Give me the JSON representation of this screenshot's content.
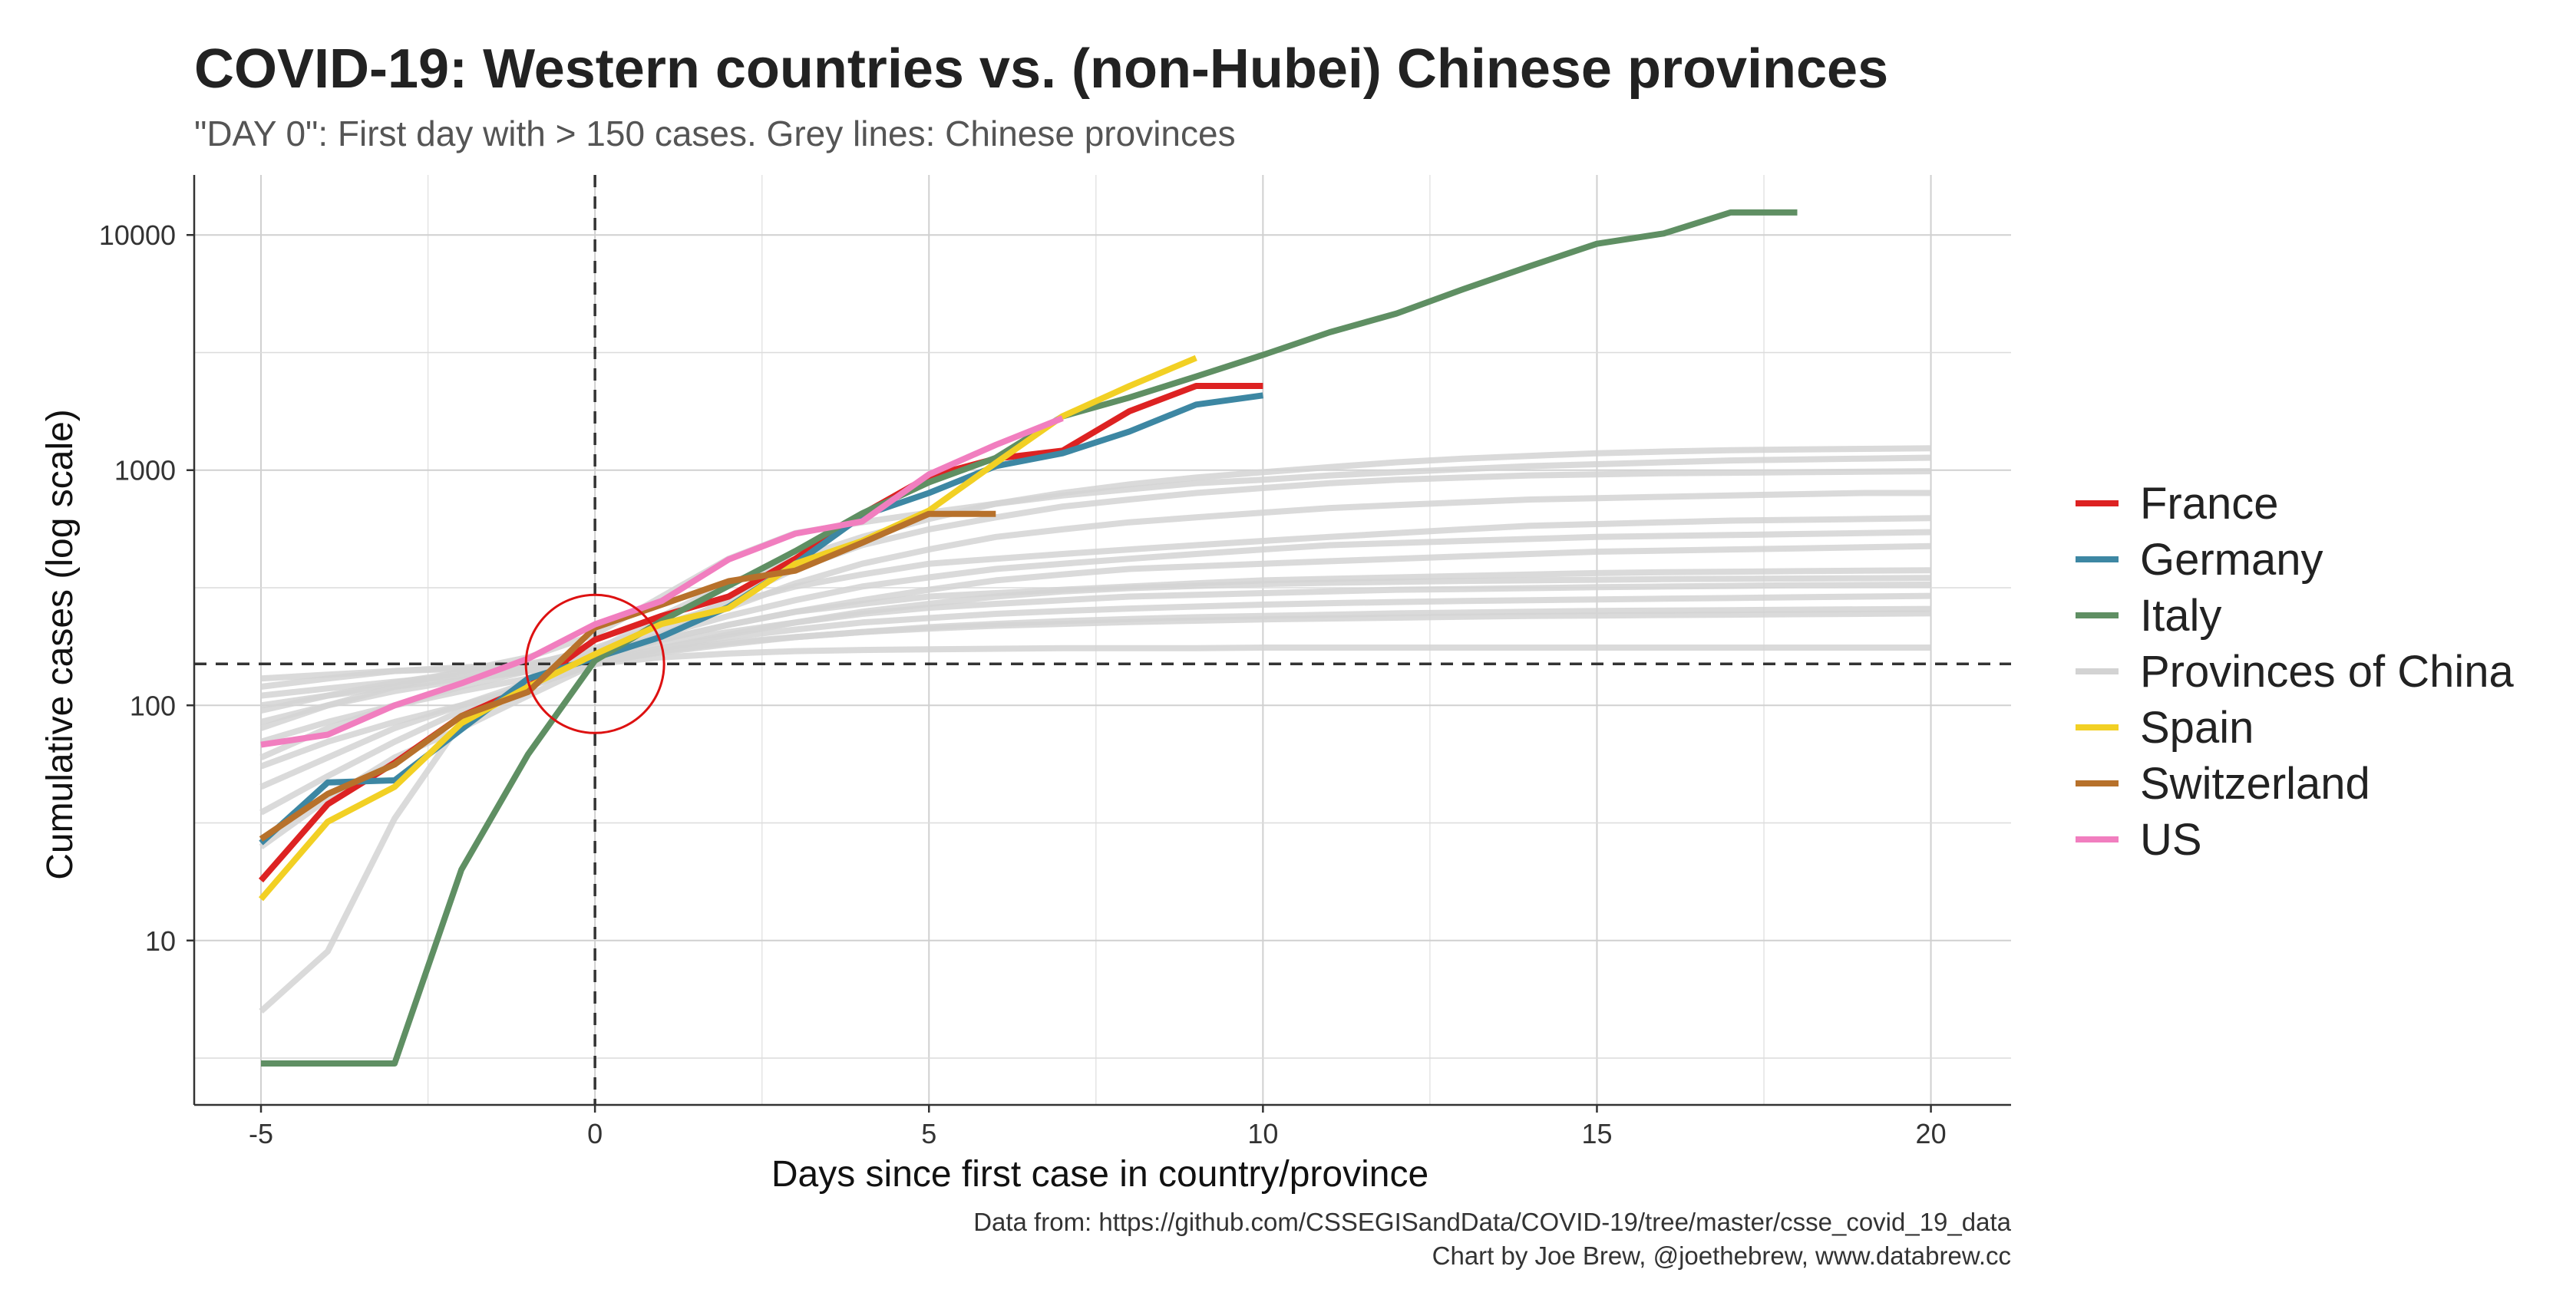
{
  "chart_data": {
    "type": "line",
    "title": "COVID-19: Western countries vs. (non-Hubei) Chinese provinces",
    "subtitle": "\"DAY 0\": First day with > 150 cases. Grey lines: Chinese provinces",
    "xlabel": "Days since first case in country/province",
    "ylabel": "Cumulative cases (log scale)",
    "y_scale": "log10",
    "xlim": [
      -6,
      21.2
    ],
    "ylim": [
      2,
      18000
    ],
    "x_ticks": [
      {
        "value": -5,
        "label": "-5"
      },
      {
        "value": 0,
        "label": "0"
      },
      {
        "value": 5,
        "label": "5"
      },
      {
        "value": 10,
        "label": "10"
      },
      {
        "value": 15,
        "label": "15"
      },
      {
        "value": 20,
        "label": "20"
      }
    ],
    "y_ticks": [
      {
        "value": 10,
        "label": "10"
      },
      {
        "value": 100,
        "label": "100"
      },
      {
        "value": 1000,
        "label": "1000"
      },
      {
        "value": 10000,
        "label": "10000"
      }
    ],
    "grid": true,
    "reference_lines": {
      "x": 0,
      "y": 150,
      "style": "dashed"
    },
    "annotation": {
      "type": "circle",
      "x": 0,
      "y": 150,
      "color": "#dd1111"
    },
    "caption": [
      "Data from: https://github.com/CSSEGISandData/COVID-19/tree/master/csse_covid_19_data",
      "Chart by Joe Brew, @joethebrew, www.databrew.cc"
    ],
    "legend_position": "right",
    "legend": [
      {
        "name": "France",
        "color": "#dd2222"
      },
      {
        "name": "Germany",
        "color": "#3d87a3"
      },
      {
        "name": "Italy",
        "color": "#5f8f63"
      },
      {
        "name": "Provinces of China",
        "color": "#d3d3d3"
      },
      {
        "name": "Spain",
        "color": "#f2d024"
      },
      {
        "name": "Switzerland",
        "color": "#b7712b"
      },
      {
        "name": "US",
        "color": "#f17ebf"
      }
    ],
    "province_series_color": "#d3d3d3",
    "province_series": [
      {
        "x": [
          -5,
          -4,
          -3,
          -2,
          -1,
          0,
          1,
          2,
          3,
          4,
          5,
          6,
          7,
          8,
          9,
          10,
          11,
          12,
          13,
          14,
          15,
          16,
          17,
          18,
          19,
          20
        ],
        "y": [
          5,
          9,
          33,
          85,
          130,
          170,
          240,
          330,
          420,
          520,
          620,
          720,
          800,
          870,
          930,
          980,
          1030,
          1080,
          1120,
          1150,
          1180,
          1200,
          1215,
          1225,
          1232,
          1238
        ]
      },
      {
        "x": [
          -5,
          -4,
          -3,
          -2,
          -1,
          0,
          1,
          2,
          3,
          4,
          5,
          6,
          7,
          8,
          9,
          10,
          11,
          12,
          13,
          14,
          15,
          16,
          17,
          18,
          19,
          20
        ],
        "y": [
          80,
          100,
          120,
          140,
          160,
          200,
          290,
          420,
          540,
          600,
          660,
          720,
          780,
          830,
          880,
          910,
          950,
          980,
          1010,
          1040,
          1060,
          1080,
          1100,
          1110,
          1120,
          1130
        ]
      },
      {
        "x": [
          -5,
          -4,
          -3,
          -2,
          -1,
          0,
          1,
          2,
          3,
          4,
          5,
          6,
          7,
          8,
          9,
          10,
          11,
          12,
          13,
          14,
          15,
          16,
          17,
          18,
          19,
          20
        ],
        "y": [
          120,
          130,
          140,
          145,
          150,
          170,
          210,
          280,
          380,
          480,
          560,
          630,
          700,
          750,
          800,
          840,
          880,
          910,
          930,
          950,
          960,
          970,
          975,
          980,
          985,
          990
        ]
      },
      {
        "x": [
          -5,
          -4,
          -3,
          -2,
          -1,
          0,
          1,
          2,
          3,
          4,
          5,
          6,
          7,
          8,
          9,
          10,
          11,
          12,
          13,
          14,
          15,
          16,
          17,
          18,
          19,
          20
        ],
        "y": [
          60,
          80,
          100,
          120,
          140,
          160,
          200,
          260,
          330,
          400,
          460,
          520,
          560,
          600,
          630,
          660,
          690,
          710,
          730,
          750,
          760,
          770,
          780,
          790,
          800,
          800
        ]
      },
      {
        "x": [
          -5,
          -4,
          -3,
          -2,
          -1,
          0,
          1,
          2,
          3,
          4,
          5,
          6,
          7,
          8,
          9,
          10,
          11,
          12,
          13,
          14,
          15,
          16,
          17,
          18,
          19,
          20
        ],
        "y": [
          95,
          110,
          125,
          138,
          148,
          175,
          220,
          270,
          320,
          360,
          400,
          420,
          440,
          460,
          480,
          500,
          520,
          540,
          560,
          580,
          590,
          600,
          610,
          615,
          620,
          625
        ]
      },
      {
        "x": [
          -5,
          -4,
          -3,
          -2,
          -1,
          0,
          1,
          2,
          3,
          4,
          5,
          6,
          7,
          8,
          9,
          10,
          11,
          12,
          13,
          14,
          15,
          16,
          17,
          18,
          19,
          20
        ],
        "y": [
          45,
          60,
          80,
          100,
          125,
          160,
          200,
          240,
          280,
          320,
          350,
          380,
          400,
          420,
          440,
          460,
          480,
          490,
          500,
          510,
          520,
          525,
          530,
          535,
          540,
          545
        ]
      },
      {
        "x": [
          -5,
          -4,
          -3,
          -2,
          -1,
          0,
          1,
          2,
          3,
          4,
          5,
          6,
          7,
          8,
          9,
          10,
          11,
          12,
          13,
          14,
          15,
          16,
          17,
          18,
          19,
          20
        ],
        "y": [
          130,
          135,
          140,
          143,
          147,
          165,
          190,
          220,
          250,
          280,
          310,
          340,
          360,
          380,
          390,
          400,
          410,
          420,
          430,
          440,
          450,
          455,
          460,
          465,
          470,
          475
        ]
      },
      {
        "x": [
          -5,
          -4,
          -3,
          -2,
          -1,
          0,
          1,
          2,
          3,
          4,
          5,
          6,
          7,
          8,
          9,
          10,
          11,
          12,
          13,
          14,
          15,
          16,
          17,
          18,
          19,
          20
        ],
        "y": [
          70,
          85,
          100,
          115,
          130,
          160,
          190,
          220,
          250,
          270,
          290,
          300,
          310,
          320,
          330,
          340,
          345,
          350,
          355,
          360,
          365,
          368,
          370,
          372,
          374,
          375
        ]
      },
      {
        "x": [
          -5,
          -4,
          -3,
          -2,
          -1,
          0,
          1,
          2,
          3,
          4,
          5,
          6,
          7,
          8,
          9,
          10,
          11,
          12,
          13,
          14,
          15,
          16,
          17,
          18,
          19,
          20
        ],
        "y": [
          110,
          118,
          126,
          134,
          142,
          158,
          185,
          205,
          225,
          245,
          260,
          270,
          280,
          290,
          295,
          300,
          305,
          310,
          312,
          315,
          318,
          320,
          322,
          324,
          325,
          326
        ]
      },
      {
        "x": [
          -5,
          -4,
          -3,
          -2,
          -1,
          0,
          1,
          2,
          3,
          4,
          5,
          6,
          7,
          8,
          9,
          10,
          11,
          12,
          13,
          14,
          15,
          16,
          17,
          18,
          19,
          20
        ],
        "y": [
          85,
          100,
          115,
          128,
          140,
          155,
          175,
          195,
          210,
          225,
          235,
          245,
          252,
          258,
          263,
          268,
          272,
          275,
          278,
          280,
          282,
          284,
          286,
          288,
          290,
          292
        ]
      },
      {
        "x": [
          -5,
          -4,
          -3,
          -2,
          -1,
          0,
          1,
          2,
          3,
          4,
          5,
          6,
          7,
          8,
          9,
          10,
          11,
          12,
          13,
          14,
          15,
          16,
          17,
          18,
          19,
          20
        ],
        "y": [
          100,
          110,
          120,
          130,
          140,
          152,
          168,
          182,
          195,
          205,
          215,
          222,
          228,
          233,
          237,
          240,
          243,
          246,
          248,
          250,
          252,
          253,
          254,
          255,
          256,
          257
        ]
      },
      {
        "x": [
          -5,
          -4,
          -3,
          -2,
          -1,
          0,
          1,
          2,
          3,
          4,
          5,
          6,
          7,
          8,
          9,
          10,
          11,
          12,
          13,
          14,
          15,
          16,
          17,
          18,
          19,
          20
        ],
        "y": [
          25,
          40,
          60,
          80,
          110,
          150,
          170,
          185,
          195,
          205,
          212,
          218,
          222,
          226,
          229,
          232,
          234,
          236,
          238,
          240,
          241,
          242,
          243,
          244,
          245,
          246
        ]
      },
      {
        "x": [
          -5,
          -4,
          -3,
          -2,
          -1,
          0,
          1,
          2,
          3,
          4,
          5,
          6,
          7,
          8,
          9,
          10,
          11,
          12,
          13,
          14,
          15,
          16,
          17,
          18,
          19,
          20
        ],
        "y": [
          55,
          70,
          85,
          100,
          120,
          150,
          160,
          166,
          170,
          172,
          173,
          174,
          175,
          175,
          175,
          176,
          176,
          176,
          176,
          176,
          176,
          176,
          176,
          176,
          176,
          176
        ]
      },
      {
        "x": [
          -5,
          -4,
          -3,
          -2,
          -1,
          0,
          1,
          2,
          3,
          4,
          5,
          6,
          7,
          8,
          9,
          10,
          11,
          12,
          13,
          14,
          15,
          16,
          17,
          18,
          19,
          20
        ],
        "y": [
          35,
          50,
          70,
          95,
          120,
          150,
          175,
          200,
          225,
          250,
          270,
          290,
          305,
          315,
          322,
          328,
          332,
          335,
          338,
          340,
          342,
          344,
          345,
          346,
          347,
          348
        ]
      }
    ],
    "series": [
      {
        "name": "France",
        "color": "#dd2222",
        "x": [
          -5,
          -4,
          -3,
          -2,
          -1,
          0,
          1,
          2,
          3,
          4,
          5,
          6,
          7,
          8,
          9,
          10
        ],
        "y": [
          18,
          38,
          57,
          90,
          120,
          190,
          240,
          290,
          420,
          650,
          940,
          1120,
          1210,
          1780,
          2280,
          2280
        ]
      },
      {
        "name": "Germany",
        "color": "#3d87a3",
        "x": [
          -5,
          -4,
          -3,
          -2,
          -1,
          0,
          1,
          2,
          3,
          4,
          5,
          6,
          7,
          8,
          9,
          10
        ],
        "y": [
          26,
          47,
          48,
          79,
          130,
          159,
          196,
          262,
          400,
          640,
          800,
          1040,
          1180,
          1460,
          1900,
          2080
        ]
      },
      {
        "name": "Italy",
        "color": "#5f8f63",
        "x": [
          -5,
          -4,
          -3,
          -2,
          -1,
          0,
          1,
          2,
          3,
          4,
          5,
          6,
          7,
          8,
          9,
          10,
          11,
          12,
          13,
          14,
          15,
          16,
          17,
          18
        ],
        "y": [
          3,
          3,
          3,
          20,
          62,
          155,
          229,
          322,
          453,
          655,
          888,
          1128,
          1694,
          2036,
          2502,
          3089,
          3858,
          4636,
          5883,
          7375,
          9172,
          10149,
          12462,
          12462
        ]
      },
      {
        "name": "Spain",
        "color": "#f2d024",
        "x": [
          -5,
          -4,
          -3,
          -2,
          -1,
          0,
          1,
          2,
          3,
          4,
          5,
          6,
          7,
          8,
          9
        ],
        "y": [
          15,
          32,
          45,
          84,
          120,
          165,
          222,
          259,
          400,
          500,
          673,
          1073,
          1695,
          2277,
          3000
        ]
      },
      {
        "name": "Switzerland",
        "color": "#b7712b",
        "x": [
          -5,
          -4,
          -3,
          -2,
          -1,
          0,
          1,
          2,
          3,
          4,
          5,
          6
        ],
        "y": [
          27,
          42,
          56,
          90,
          114,
          214,
          268,
          337,
          374,
          491,
          652,
          652
        ]
      },
      {
        "name": "US",
        "color": "#f17ebf",
        "x": [
          -5,
          -4,
          -3,
          -2,
          -1,
          0,
          1,
          2,
          3,
          4,
          5,
          6,
          7
        ],
        "y": [
          68,
          75,
          100,
          124,
          158,
          221,
          278,
          417,
          537,
          605,
          959,
          1281,
          1663
        ]
      }
    ]
  }
}
